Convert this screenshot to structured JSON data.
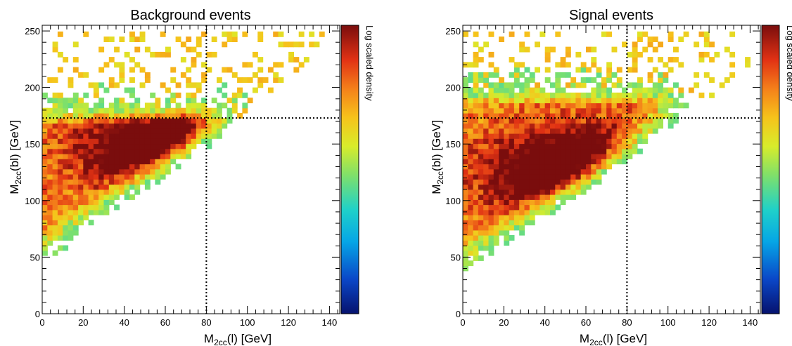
{
  "colorbar_label": "Log scaled density",
  "chart_data": [
    {
      "type": "heatmap",
      "title": "Background events",
      "xlabel_main": "M",
      "xlabel_sub": "2cc",
      "xlabel_rest": "(l)   [GeV]",
      "ylabel_main": "M",
      "ylabel_sub": "2cc",
      "ylabel_rest": "(bl)   [GeV]",
      "xlim": [
        0,
        145
      ],
      "ylim": [
        0,
        255
      ],
      "xticks": [
        0,
        20,
        40,
        60,
        80,
        100,
        120,
        140
      ],
      "yticks": [
        0,
        50,
        100,
        150,
        200,
        250
      ],
      "cut_lines": {
        "x": 80,
        "y": 173
      },
      "colorbar": {
        "scale": "log",
        "colormap": "rainbow",
        "label": "Log scaled density"
      },
      "density_model": {
        "x_range": [
          0,
          140
        ],
        "lower_edge_at_x0": 55,
        "lower_edge_slope": 1.35,
        "upper_edge_core": 168,
        "peak": [
          68,
          148
        ],
        "sparse_max_y": 250
      }
    },
    {
      "type": "heatmap",
      "title": "Signal events",
      "xlabel_main": "M",
      "xlabel_sub": "2cc",
      "xlabel_rest": "(l)   [GeV]",
      "ylabel_main": "M",
      "ylabel_sub": "2cc",
      "ylabel_rest": "(bl)   [GeV]",
      "xlim": [
        0,
        145
      ],
      "ylim": [
        0,
        255
      ],
      "xticks": [
        0,
        20,
        40,
        60,
        80,
        100,
        120,
        140
      ],
      "yticks": [
        0,
        50,
        100,
        150,
        200,
        250
      ],
      "cut_lines": {
        "x": 80,
        "y": 173
      },
      "colorbar": {
        "scale": "log",
        "colormap": "rainbow",
        "label": "Log scaled density"
      },
      "density_model": {
        "x_range": [
          0,
          140
        ],
        "lower_edge_at_x0": 45,
        "lower_edge_slope": 1.3,
        "upper_edge_core": 185,
        "peak": [
          60,
          125
        ],
        "sparse_max_y": 250
      }
    }
  ]
}
